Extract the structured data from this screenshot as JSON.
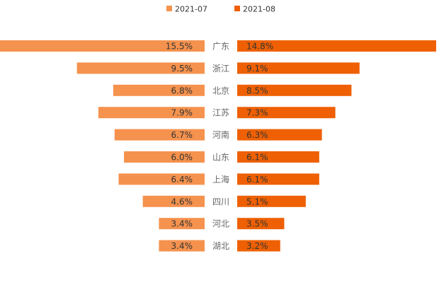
{
  "chart_data": {
    "type": "bar",
    "orientation": "horizontal-butterfly",
    "title": "",
    "categories": [
      "广东",
      "浙江",
      "北京",
      "江苏",
      "河南",
      "山东",
      "上海",
      "四川",
      "河北",
      "湖北"
    ],
    "series": [
      {
        "name": "2021-07",
        "color": "#f5924e",
        "side": "left",
        "values": [
          15.5,
          9.5,
          6.8,
          7.9,
          6.7,
          6.0,
          6.4,
          4.6,
          3.4,
          3.4
        ],
        "labels": [
          "15.5%",
          "9.5%",
          "6.8%",
          "7.9%",
          "6.7%",
          "6.0%",
          "6.4%",
          "4.6%",
          "3.4%",
          "3.4%"
        ]
      },
      {
        "name": "2021-08",
        "color": "#ee6003",
        "side": "right",
        "values": [
          14.8,
          9.1,
          8.5,
          7.3,
          6.3,
          6.1,
          6.1,
          5.1,
          3.5,
          3.2
        ],
        "labels": [
          "14.8%",
          "9.1%",
          "8.5%",
          "7.3%",
          "6.3%",
          "6.1%",
          "6.1%",
          "5.1%",
          "3.5%",
          "3.2%"
        ]
      }
    ],
    "xlim": [
      0,
      14.8
    ],
    "legend_position": "top-center",
    "grid": false
  }
}
